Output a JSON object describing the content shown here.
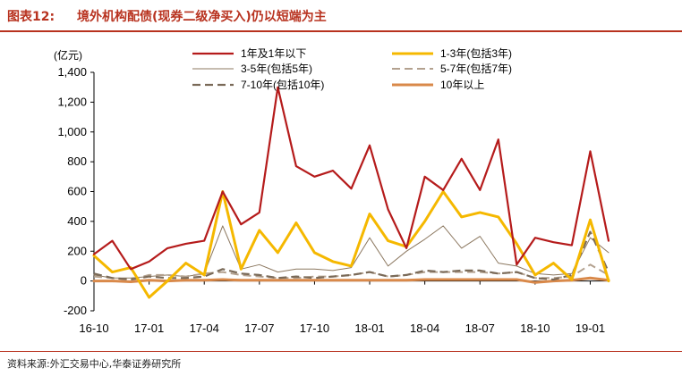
{
  "header": {
    "figure_label": "图表12:",
    "title": "境外机构配债(现券二级净买入)仍以短端为主"
  },
  "footer": {
    "source": "资料来源:外汇交易中心,华泰证券研究所"
  },
  "chart_data": {
    "type": "line",
    "ylabel": "(亿元)",
    "ylim": [
      -200,
      1400
    ],
    "yticks": [
      -200,
      0,
      200,
      400,
      600,
      800,
      1000,
      1200,
      1400
    ],
    "ytick_labels": [
      "-200",
      "0",
      "200",
      "400",
      "600",
      "800",
      "1,000",
      "1,200",
      "1,400"
    ],
    "x": [
      "16-10",
      "16-11",
      "16-12",
      "17-01",
      "17-02",
      "17-03",
      "17-04",
      "17-05",
      "17-06",
      "17-07",
      "17-08",
      "17-09",
      "17-10",
      "17-11",
      "17-12",
      "18-01",
      "18-02",
      "18-03",
      "18-04",
      "18-05",
      "18-06",
      "18-07",
      "18-08",
      "18-09",
      "18-10",
      "18-11",
      "18-12",
      "19-01",
      "19-02"
    ],
    "xtick_labels": [
      "16-10",
      "17-01",
      "17-04",
      "17-07",
      "17-10",
      "18-01",
      "18-04",
      "18-07",
      "18-10",
      "19-01"
    ],
    "xtick_index": [
      0,
      3,
      6,
      9,
      12,
      15,
      18,
      21,
      24,
      27
    ],
    "legend_position": "top",
    "grid": false,
    "series": [
      {
        "name": "1年及1年以下",
        "color": "#b51b1b",
        "style": "solid",
        "width": 2.2,
        "values": [
          180,
          270,
          80,
          130,
          220,
          250,
          270,
          600,
          380,
          460,
          1300,
          770,
          700,
          740,
          620,
          910,
          480,
          220,
          700,
          610,
          820,
          610,
          950,
          110,
          290,
          260,
          240,
          870,
          270
        ]
      },
      {
        "name": "1-3年(包括3年)",
        "color": "#f5b800",
        "style": "solid",
        "width": 3,
        "values": [
          170,
          60,
          90,
          -110,
          0,
          120,
          40,
          600,
          80,
          340,
          190,
          390,
          190,
          130,
          100,
          450,
          270,
          230,
          400,
          600,
          430,
          460,
          430,
          250,
          40,
          120,
          10,
          410,
          0
        ]
      },
      {
        "name": "3-5年(包括5年)",
        "color": "#8c7860",
        "style": "solid",
        "width": 1,
        "values": [
          40,
          20,
          20,
          30,
          40,
          30,
          50,
          370,
          80,
          110,
          60,
          80,
          80,
          70,
          90,
          290,
          100,
          200,
          280,
          370,
          220,
          300,
          120,
          100,
          50,
          40,
          50,
          290,
          190
        ]
      },
      {
        "name": "5-7年(包括7年)",
        "color": "#b3a18f",
        "style": "dash",
        "width": 2,
        "values": [
          30,
          20,
          10,
          40,
          40,
          30,
          50,
          60,
          40,
          30,
          20,
          20,
          30,
          30,
          40,
          60,
          30,
          40,
          60,
          60,
          60,
          60,
          50,
          60,
          20,
          20,
          30,
          110,
          40
        ]
      },
      {
        "name": "7-10年(包括10年)",
        "color": "#7a6a58",
        "style": "dash",
        "width": 2.2,
        "values": [
          50,
          20,
          10,
          30,
          20,
          20,
          30,
          80,
          50,
          40,
          20,
          30,
          20,
          30,
          40,
          60,
          30,
          40,
          70,
          60,
          70,
          70,
          50,
          60,
          20,
          10,
          40,
          330,
          60
        ]
      },
      {
        "name": "10年以上",
        "color": "#d9894a",
        "style": "solid",
        "width": 3,
        "values": [
          0,
          0,
          -5,
          5,
          0,
          5,
          5,
          10,
          5,
          5,
          5,
          5,
          5,
          5,
          5,
          5,
          5,
          5,
          10,
          10,
          10,
          10,
          10,
          10,
          -10,
          0,
          5,
          20,
          5
        ]
      }
    ]
  }
}
